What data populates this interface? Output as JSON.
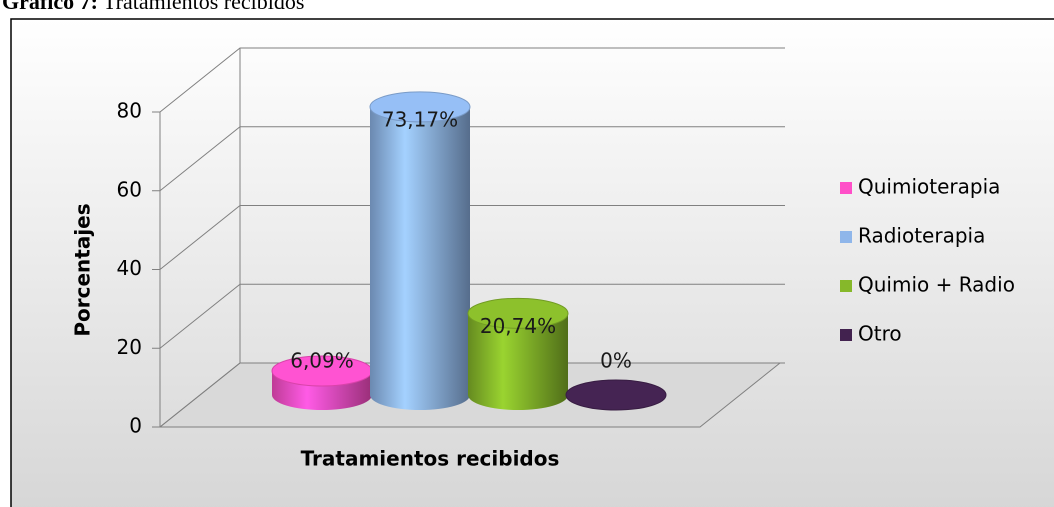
{
  "chart_data": {
    "type": "bar3d",
    "figure_label": "Gráfico 7:",
    "title": "Tratamientos recibidos",
    "xlabel": "Tratamientos recibidos",
    "ylabel": "Porcentajes",
    "categories": [
      null
    ],
    "series": [
      {
        "name": "Quimioterapia",
        "color": "#ff4fc8",
        "values": [
          6.09
        ],
        "value_labels": [
          "6,09%"
        ]
      },
      {
        "name": "Radioterapia",
        "color": "#8fb6ea",
        "values": [
          73.17
        ],
        "value_labels": [
          "73,17%"
        ]
      },
      {
        "name": "Quimio + Radio",
        "color": "#86b82a",
        "values": [
          20.74
        ],
        "value_labels": [
          "20,74%"
        ]
      },
      {
        "name": "Otro",
        "color": "#42224f",
        "values": [
          0
        ],
        "value_labels": [
          "0%"
        ]
      }
    ],
    "ylim": [
      0,
      80
    ],
    "yticks": [
      0,
      20,
      40,
      60,
      80
    ],
    "grid": true,
    "legend": "right"
  }
}
